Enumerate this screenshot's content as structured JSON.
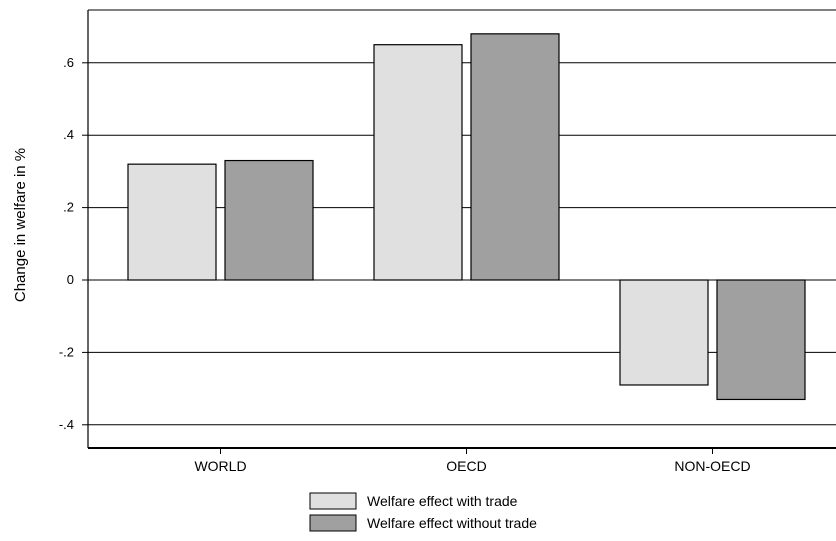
{
  "chart_data": {
    "type": "bar",
    "title": "",
    "xlabel": "",
    "ylabel": "Change in welfare in %",
    "categories": [
      "WORLD",
      "OECD",
      "NON-OECD"
    ],
    "series": [
      {
        "name": "Welfare effect with trade",
        "values": [
          0.32,
          0.65,
          -0.29
        ],
        "color": "#e0e0e0"
      },
      {
        "name": "Welfare effect without trade",
        "values": [
          0.33,
          0.68,
          -0.33
        ],
        "color": "#a0a0a0"
      }
    ],
    "yticks": [
      {
        "value": -0.4,
        "label": "-.4"
      },
      {
        "value": -0.2,
        "label": "-.2"
      },
      {
        "value": 0,
        "label": "0"
      },
      {
        "value": 0.2,
        "label": ".2"
      },
      {
        "value": 0.4,
        "label": ".4"
      },
      {
        "value": 0.6,
        "label": ".6"
      }
    ],
    "ylim": [
      -0.45,
      0.75
    ],
    "grid": true,
    "legend_position": "bottom"
  }
}
